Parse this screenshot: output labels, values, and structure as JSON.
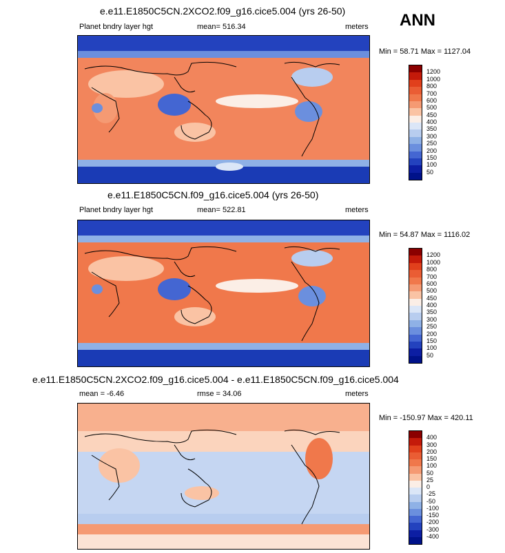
{
  "season_label": "ANN",
  "panels": [
    {
      "title": "e.e11.E1850C5CN.2XCO2.f09_g16.cice5.004 (yrs 26-50)",
      "left_label": "Planet bndry layer hgt",
      "center_label": "mean= 516.34",
      "units": "meters",
      "minmax": "Min =  58.71 Max = 1127.04",
      "levels": [
        "1200",
        "1000",
        "800",
        "700",
        "600",
        "500",
        "450",
        "400",
        "350",
        "300",
        "250",
        "200",
        "150",
        "100",
        "50"
      ],
      "colors": [
        "#8b0000",
        "#c41a0a",
        "#e1401c",
        "#ea5d34",
        "#f0784b",
        "#f59a73",
        "#fac3a4",
        "#fbeee6",
        "#dbe6f7",
        "#b8cdef",
        "#8fb1e6",
        "#6b8fde",
        "#4466d2",
        "#2342be",
        "#0c1ea3",
        "#00128a"
      ]
    },
    {
      "title": "e.e11.E1850C5CN.f09_g16.cice5.004 (yrs 26-50)",
      "left_label": "Planet bndry layer hgt",
      "center_label": "mean= 522.81",
      "units": "meters",
      "minmax": "Min =  54.87 Max = 1116.02",
      "levels": [
        "1200",
        "1000",
        "800",
        "700",
        "600",
        "500",
        "450",
        "400",
        "350",
        "300",
        "250",
        "200",
        "150",
        "100",
        "50"
      ],
      "colors": [
        "#8b0000",
        "#c41a0a",
        "#e1401c",
        "#ea5d34",
        "#f0784b",
        "#f59a73",
        "#fac3a4",
        "#fbeee6",
        "#dbe6f7",
        "#b8cdef",
        "#8fb1e6",
        "#6b8fde",
        "#4466d2",
        "#2342be",
        "#0c1ea3",
        "#00128a"
      ]
    },
    {
      "title": "e.e11.E1850C5CN.2XCO2.f09_g16.cice5.004 - e.e11.E1850C5CN.f09_g16.cice5.004",
      "left_label": "mean =  -6.46",
      "center_label": "rmse =  34.06",
      "units": "meters",
      "minmax": "Min = -150.97 Max = 420.11",
      "levels": [
        "400",
        "300",
        "200",
        "150",
        "100",
        "50",
        "25",
        "0",
        "-25",
        "-50",
        "-100",
        "-150",
        "-200",
        "-300",
        "-400"
      ],
      "colors": [
        "#8b0000",
        "#c41a0a",
        "#e1401c",
        "#ea5d34",
        "#f0784b",
        "#f59a73",
        "#fac3a4",
        "#fbeee6",
        "#dbe6f7",
        "#b8cdef",
        "#8fb1e6",
        "#6b8fde",
        "#4466d2",
        "#2342be",
        "#0c1ea3",
        "#00128a"
      ]
    }
  ]
}
